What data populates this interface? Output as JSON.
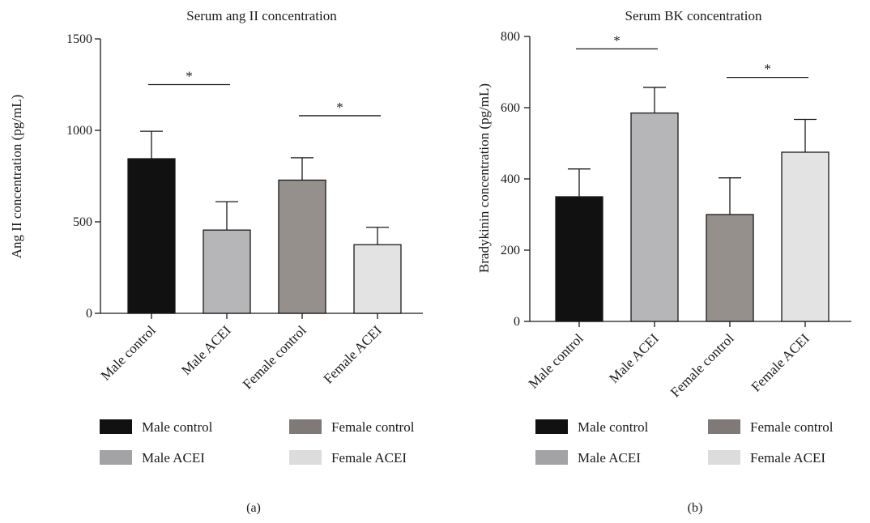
{
  "chart_data": [
    {
      "type": "bar",
      "title": "Serum ang II concentration",
      "ylabel": "Ang II concentration (pg/mL)",
      "xlabel": "",
      "panel_label": "(a)",
      "ylim": [
        0,
        1500
      ],
      "yticks": [
        0,
        500,
        1000,
        1500
      ],
      "categories": [
        "Male control",
        "Male ACEI",
        "Female control",
        "Female ACEI"
      ],
      "values": [
        845,
        455,
        728,
        375
      ],
      "errors": [
        150,
        155,
        122,
        95
      ],
      "colors": [
        "#111111",
        "#b6b5b8",
        "#95908c",
        "#e3e3e3"
      ],
      "significance": [
        {
          "between": [
            0,
            1
          ],
          "y": 1250,
          "label": "*"
        },
        {
          "between": [
            2,
            3
          ],
          "y": 1080,
          "label": "*"
        }
      ],
      "legend": [
        {
          "label": "Male control",
          "color": "#111111"
        },
        {
          "label": "Female control",
          "color": "#7f7a78"
        },
        {
          "label": "Male ACEI",
          "color": "#a3a3a5"
        },
        {
          "label": "Female ACEI",
          "color": "#dcdcdc"
        }
      ]
    },
    {
      "type": "bar",
      "title": "Serum BK concentration",
      "ylabel": "Bradykinin concentration (pg/mL)",
      "xlabel": "",
      "panel_label": "(b)",
      "ylim": [
        0,
        800
      ],
      "yticks": [
        0,
        200,
        400,
        600,
        800
      ],
      "categories": [
        "Male control",
        "Male ACEI",
        "Female control",
        "Female ACEI"
      ],
      "values": [
        350,
        585,
        300,
        475
      ],
      "errors": [
        78,
        72,
        103,
        92
      ],
      "colors": [
        "#111111",
        "#b6b5b8",
        "#95908c",
        "#e3e3e3"
      ],
      "significance": [
        {
          "between": [
            0,
            1
          ],
          "y": 765,
          "label": "*"
        },
        {
          "between": [
            2,
            3
          ],
          "y": 685,
          "label": "*"
        }
      ],
      "legend": [
        {
          "label": "Male control",
          "color": "#111111"
        },
        {
          "label": "Female control",
          "color": "#7f7a78"
        },
        {
          "label": "Male ACEI",
          "color": "#a3a3a5"
        },
        {
          "label": "Female ACEI",
          "color": "#dcdcdc"
        }
      ]
    }
  ]
}
